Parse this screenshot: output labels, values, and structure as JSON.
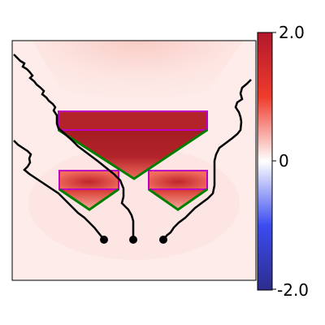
{
  "colorbar": {
    "max_label": "2.0",
    "mid_label": "0",
    "min_label": "-2.0",
    "colors": {
      "max": "#b2182b",
      "high": "#ef3b2c",
      "mid": "#ffffff",
      "low": "#3b4cf0",
      "min": "#2d2d8c"
    }
  },
  "colors": {
    "path": "#000000",
    "box_outline": "#c000c0",
    "triangle_edge": "#008000",
    "field_bg": "#fde9e6",
    "field_glow": "#fbcfc9",
    "hot_core": "#a01e22",
    "hot_edge": "#ef3b2c"
  },
  "diagram": {
    "source_points": 3,
    "boxes": 3,
    "triangles": 3
  }
}
